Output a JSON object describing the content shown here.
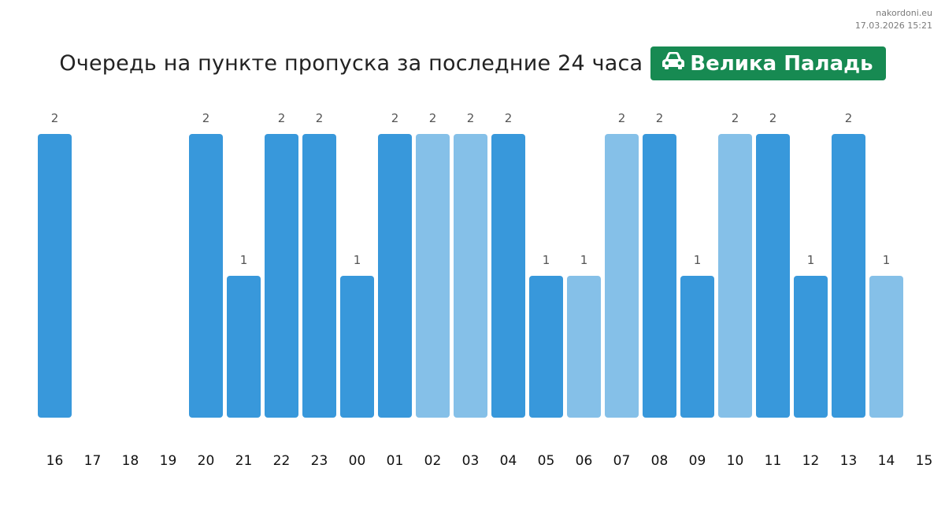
{
  "watermark": {
    "site": "nakordoni.eu",
    "timestamp": "17.03.2026 15:21"
  },
  "header": {
    "title": "Очередь на пункте пропуска за последние 24 часа",
    "badge_label": "Велика Паладь",
    "badge_icon": "car-icon"
  },
  "colors": {
    "bar_dark": "#3898db",
    "bar_light": "#85c0e8",
    "badge": "#178a52",
    "value_label": "#555555",
    "tick_label": "#111111"
  },
  "chart_data": {
    "type": "bar",
    "title": "Очередь на пункте пропуска за последние 24 часа",
    "categories": [
      "16",
      "17",
      "18",
      "19",
      "20",
      "21",
      "22",
      "23",
      "00",
      "01",
      "02",
      "03",
      "04",
      "05",
      "06",
      "07",
      "08",
      "09",
      "10",
      "11",
      "12",
      "13",
      "14",
      "15"
    ],
    "values": [
      2,
      0,
      0,
      0,
      2,
      1,
      2,
      2,
      1,
      2,
      2,
      2,
      2,
      1,
      1,
      2,
      2,
      1,
      2,
      2,
      1,
      2,
      1,
      0
    ],
    "shade": [
      "dark",
      "dark",
      "dark",
      "dark",
      "dark",
      "dark",
      "dark",
      "dark",
      "dark",
      "dark",
      "light",
      "light",
      "dark",
      "dark",
      "light",
      "light",
      "dark",
      "dark",
      "light",
      "dark",
      "dark",
      "dark",
      "light",
      "dark"
    ],
    "ylim": [
      0,
      2
    ],
    "show_value_labels": true,
    "grid": false,
    "legend": "none"
  }
}
